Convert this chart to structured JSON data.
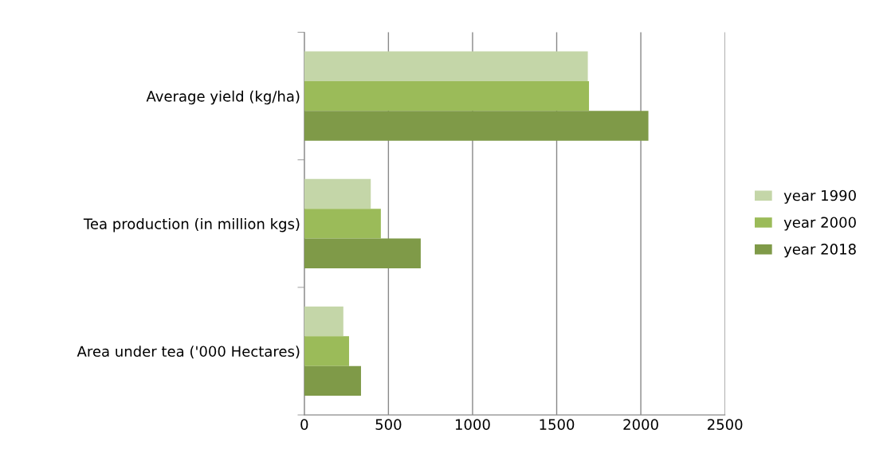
{
  "chart_data": {
    "type": "bar",
    "orientation": "horizontal",
    "categories": [
      "Average yield (kg/ha)",
      "Tea production (in million kgs)",
      "Area under tea ('000 Hectares)"
    ],
    "series": [
      {
        "name": "year 1990",
        "color": "#c4d6a8",
        "values": [
          1685,
          395,
          232
        ]
      },
      {
        "name": "year 2000",
        "color": "#9bbb59",
        "values": [
          1692,
          455,
          266
        ]
      },
      {
        "name": "year 2018",
        "color": "#7f9a48",
        "values": [
          2045,
          692,
          337
        ]
      }
    ],
    "xlim": [
      0,
      2500
    ],
    "xticks": [
      0,
      500,
      1000,
      1500,
      2000,
      2500
    ],
    "grid": "x",
    "legend": "right"
  }
}
